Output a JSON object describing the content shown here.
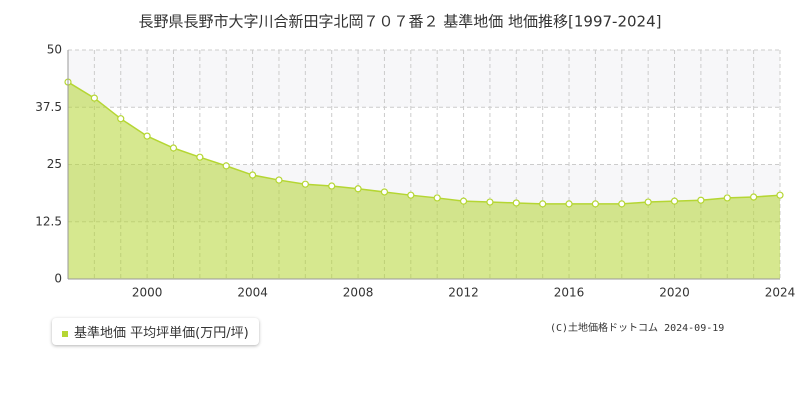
{
  "chart_data": {
    "type": "area",
    "title": "長野県長野市大字川合新田字北岡７０７番２ 基準地価 地価推移[1997-2024]",
    "x": [
      1997,
      1998,
      1999,
      2000,
      2001,
      2002,
      2003,
      2004,
      2005,
      2006,
      2007,
      2008,
      2009,
      2010,
      2011,
      2012,
      2013,
      2014,
      2015,
      2016,
      2017,
      2018,
      2019,
      2020,
      2021,
      2022,
      2023,
      2024
    ],
    "series": [
      {
        "name": "基準地価 平均坪単価(万円/坪)",
        "color": "#b5d633",
        "values": [
          43.0,
          39.5,
          35.0,
          31.2,
          28.6,
          26.6,
          24.7,
          22.7,
          21.6,
          20.7,
          20.3,
          19.7,
          19.0,
          18.3,
          17.7,
          17.0,
          16.8,
          16.6,
          16.4,
          16.4,
          16.4,
          16.4,
          16.8,
          17.0,
          17.2,
          17.7,
          17.9,
          18.3
        ]
      }
    ],
    "xlim": [
      1997,
      2024
    ],
    "xticks": [
      2000,
      2004,
      2008,
      2012,
      2016,
      2020,
      2024
    ],
    "ylim": [
      0,
      50
    ],
    "yticks": [
      0,
      12.5,
      25,
      37.5,
      50
    ],
    "grid": true,
    "source": "(C)土地価格ドットコム 2024-09-19"
  }
}
